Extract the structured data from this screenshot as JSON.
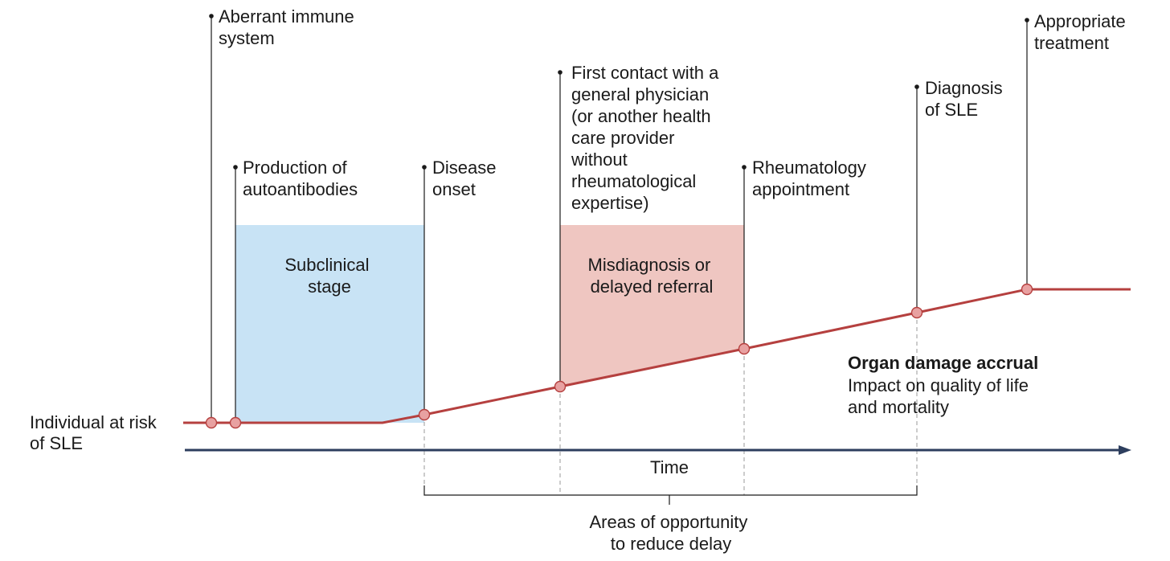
{
  "colors": {
    "disease_line": "#b5403f",
    "node_fill": "#e8a1a1",
    "subclinical_fill": "#c8e3f5",
    "misdiagnosis_fill": "#efc6c1",
    "time_axis": "#2d3e5e",
    "text": "#1a1a1a"
  },
  "start_label": [
    "Individual at risk",
    "of SLE"
  ],
  "events": {
    "aberrant_immune": [
      "Aberrant immune",
      "system"
    ],
    "autoantibodies": [
      "Production of",
      "autoantibodies"
    ],
    "disease_onset": [
      "Disease",
      "onset"
    ],
    "first_contact": [
      "First contact with a",
      "general physician",
      "(or another health",
      "care provider",
      "without",
      "rheumatological",
      "expertise)"
    ],
    "rheumatology": [
      "Rheumatology",
      "appointment"
    ],
    "diagnosis": [
      "Diagnosis",
      "of SLE"
    ],
    "treatment": [
      "Appropriate",
      "treatment"
    ]
  },
  "stages": {
    "subclinical": [
      "Subclinical",
      "stage"
    ],
    "misdiagnosis": [
      "Misdiagnosis or",
      "delayed referral"
    ]
  },
  "outcome": {
    "title": "Organ damage accrual",
    "description": [
      "Impact on quality of life",
      "and mortality"
    ]
  },
  "time_label": "Time",
  "opportunity_label": [
    "Areas of opportunity",
    "to reduce delay"
  ]
}
